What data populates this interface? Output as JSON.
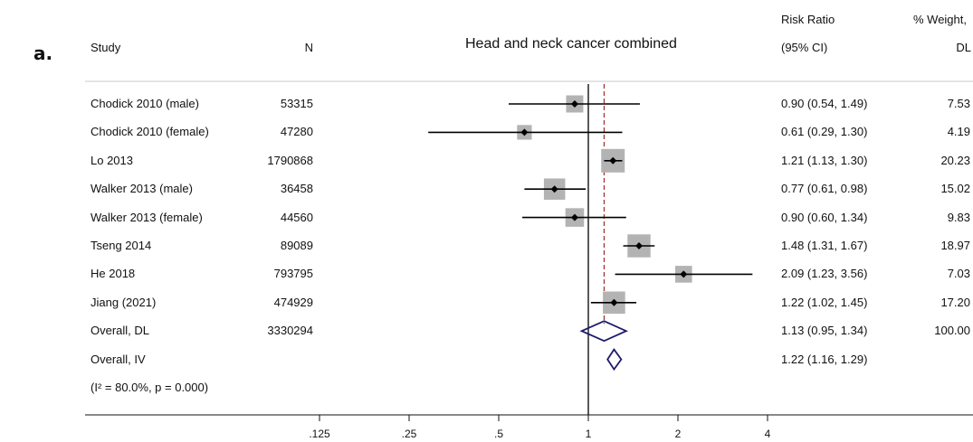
{
  "panel_label": "a.",
  "headers": {
    "study": "Study",
    "n": "N",
    "rr_line1": "Risk Ratio",
    "rr_line2": "(95% CI)",
    "w_line1": "% Weight,",
    "w_line2": "DL"
  },
  "heterogeneity_note": "(I² = 80.0%, p = 0.000)",
  "chart_data": {
    "type": "forest",
    "title": "Head and neck cancer combined",
    "x_scale": "log",
    "xlim": [
      0.125,
      4
    ],
    "x_ticks": [
      0.125,
      0.25,
      0.5,
      1,
      2,
      4
    ],
    "x_tick_labels": [
      ".125",
      ".25",
      ".5",
      "1",
      "2",
      "4"
    ],
    "null_line": 1,
    "overall_line": 1.13,
    "studies": [
      {
        "name": "Chodick 2010 (male)",
        "n": "53315",
        "rr": 0.9,
        "lo": 0.54,
        "hi": 1.49,
        "ci_text": "0.90 (0.54, 1.49)",
        "weight": "7.53"
      },
      {
        "name": "Chodick 2010 (female)",
        "n": "47280",
        "rr": 0.61,
        "lo": 0.29,
        "hi": 1.3,
        "ci_text": "0.61 (0.29, 1.30)",
        "weight": "4.19"
      },
      {
        "name": "Lo 2013",
        "n": "1790868",
        "rr": 1.21,
        "lo": 1.13,
        "hi": 1.3,
        "ci_text": "1.21 (1.13, 1.30)",
        "weight": "20.23"
      },
      {
        "name": "Walker 2013 (male)",
        "n": "36458",
        "rr": 0.77,
        "lo": 0.61,
        "hi": 0.98,
        "ci_text": "0.77 (0.61, 0.98)",
        "weight": "15.02"
      },
      {
        "name": "Walker 2013 (female)",
        "n": "44560",
        "rr": 0.9,
        "lo": 0.6,
        "hi": 1.34,
        "ci_text": "0.90 (0.60, 1.34)",
        "weight": "9.83"
      },
      {
        "name": "Tseng 2014",
        "n": "89089",
        "rr": 1.48,
        "lo": 1.31,
        "hi": 1.67,
        "ci_text": "1.48 (1.31, 1.67)",
        "weight": "18.97"
      },
      {
        "name": "He 2018",
        "n": "793795",
        "rr": 2.09,
        "lo": 1.23,
        "hi": 3.56,
        "ci_text": "2.09 (1.23, 3.56)",
        "weight": "7.03"
      },
      {
        "name": "Jiang (2021)",
        "n": "474929",
        "rr": 1.22,
        "lo": 1.02,
        "hi": 1.45,
        "ci_text": "1.22 (1.02, 1.45)",
        "weight": "17.20"
      }
    ],
    "overall": [
      {
        "name": "Overall, DL",
        "n": "3330294",
        "rr": 1.13,
        "lo": 0.95,
        "hi": 1.34,
        "ci_text": "1.13 (0.95, 1.34)",
        "weight": "100.00"
      },
      {
        "name": "Overall, IV",
        "n": "",
        "rr": 1.22,
        "lo": 1.16,
        "hi": 1.29,
        "ci_text": "1.22 (1.16, 1.29)",
        "weight": ""
      }
    ],
    "colors": {
      "box": "#b3b3b3",
      "line": "#000000",
      "diamond": "#1b1b6b",
      "overall_line": "#9e2a2a"
    }
  }
}
